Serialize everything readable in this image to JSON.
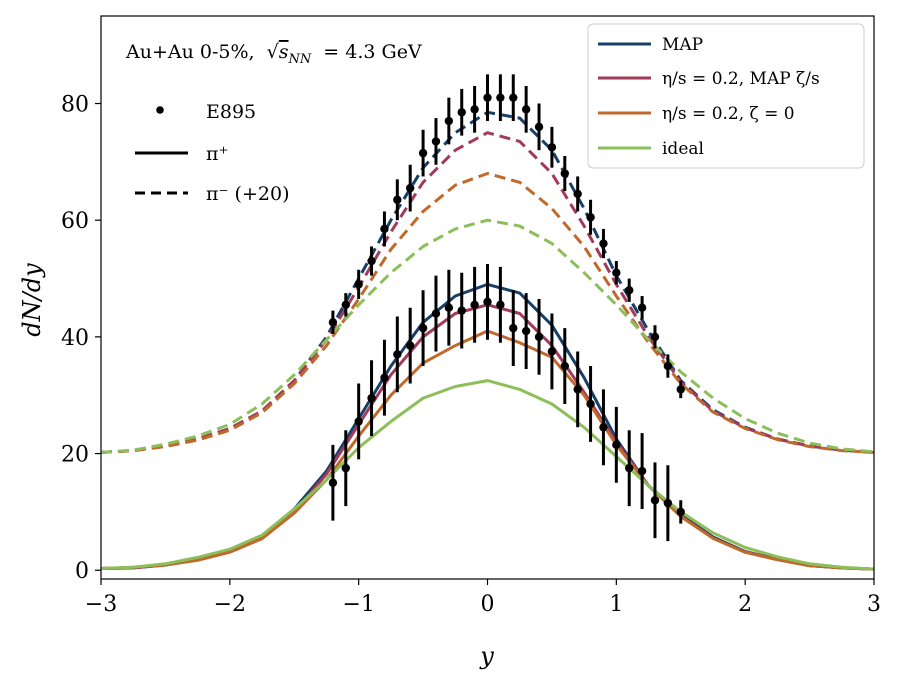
{
  "chart_data": {
    "type": "line",
    "title": "",
    "annotation": "Au+Au 0-5%, √s_NN = 4.3 GeV",
    "annotation_parts": {
      "system": "Au+Au 0-5%,",
      "sqrt": "√",
      "s": "s",
      "sub": "NN",
      "eq": "= 4.3 GeV"
    },
    "xlabel": "y",
    "ylabel": "dN/dy",
    "xlim": [
      -3,
      3
    ],
    "ylim": [
      -1.5,
      95
    ],
    "xticks": [
      -3,
      -2,
      -1,
      0,
      1,
      2,
      3
    ],
    "xtick_labels": [
      "−3",
      "−2",
      "−1",
      "0",
      "1",
      "2",
      "3"
    ],
    "yticks": [
      0,
      20,
      40,
      60,
      80
    ],
    "ytick_labels": [
      "0",
      "20",
      "40",
      "60",
      "80"
    ],
    "grid": false,
    "colors": {
      "MAP": "#173f68",
      "eta_MAP": "#a23a5a",
      "eta_zeta0": "#c0692b",
      "ideal": "#8cbf5a",
      "data": "#000000"
    },
    "legend_models": [
      {
        "key": "MAP",
        "label": "MAP"
      },
      {
        "key": "eta_MAP",
        "label": "η/s = 0.2,  MAP ζ/s"
      },
      {
        "key": "eta_zeta0",
        "label": "η/s = 0.2,  ζ = 0"
      },
      {
        "key": "ideal",
        "label": "ideal"
      }
    ],
    "legend_models_position": "top-right",
    "legend_styles": [
      {
        "key": "data",
        "label": "E895"
      },
      {
        "key": "solid",
        "label": "π⁺"
      },
      {
        "key": "dashed",
        "label": "π⁻ (+20)"
      }
    ],
    "legend_styles_position": "top-left",
    "series": [
      {
        "name": "MAP",
        "species": "pi+",
        "color_key": "MAP",
        "x": [
          -3,
          -2.75,
          -2.5,
          -2.25,
          -2,
          -1.75,
          -1.5,
          -1.25,
          -1,
          -0.75,
          -0.5,
          -0.25,
          0,
          0.25,
          0.5,
          0.75,
          1,
          1.25,
          1.5,
          1.75,
          2,
          2.25,
          2.5,
          2.75,
          3
        ],
        "y": [
          0.3,
          0.4,
          0.9,
          1.8,
          3.3,
          5.9,
          10.5,
          17,
          26,
          35,
          42.5,
          47,
          49,
          47.5,
          42,
          33,
          22.5,
          14.5,
          9.5,
          5.7,
          3.2,
          1.9,
          0.8,
          0.4,
          0.2
        ]
      },
      {
        "name": "η/s = 0.2, MAP ζ/s",
        "species": "pi+",
        "color_key": "eta_MAP",
        "x": [
          -3,
          -2.75,
          -2.5,
          -2.25,
          -2,
          -1.75,
          -1.5,
          -1.25,
          -1,
          -0.75,
          -0.5,
          -0.25,
          0,
          0.25,
          0.5,
          0.75,
          1,
          1.25,
          1.5,
          1.75,
          2,
          2.25,
          2.5,
          2.75,
          3
        ],
        "y": [
          0.3,
          0.4,
          0.9,
          1.8,
          3.2,
          5.6,
          10,
          16.5,
          25,
          33.5,
          40,
          44,
          45.5,
          44,
          38.5,
          30.5,
          22,
          14.5,
          9.3,
          5.5,
          3.1,
          1.8,
          0.8,
          0.4,
          0.2
        ]
      },
      {
        "name": "η/s = 0.2, ζ = 0",
        "species": "pi+",
        "color_key": "eta_zeta0",
        "x": [
          -3,
          -2.75,
          -2.5,
          -2.25,
          -2,
          -1.75,
          -1.5,
          -1.25,
          -1,
          -0.75,
          -0.5,
          -0.25,
          0,
          0.25,
          0.5,
          0.75,
          1,
          1.25,
          1.5,
          1.75,
          2,
          2.25,
          2.5,
          2.75,
          3
        ],
        "y": [
          0.3,
          0.5,
          0.9,
          1.7,
          3.1,
          5.4,
          9.8,
          15.5,
          23,
          30,
          35.5,
          38.5,
          41,
          39,
          36.5,
          30,
          21.5,
          14.5,
          9.2,
          5.5,
          3.1,
          1.8,
          0.8,
          0.4,
          0.2
        ]
      },
      {
        "name": "ideal",
        "species": "pi+",
        "color_key": "ideal",
        "x": [
          -3,
          -2.75,
          -2.5,
          -2.25,
          -2,
          -1.75,
          -1.5,
          -1.25,
          -1,
          -0.75,
          -0.5,
          -0.25,
          0,
          0.25,
          0.5,
          0.75,
          1,
          1.25,
          1.5,
          1.75,
          2,
          2.25,
          2.5,
          2.75,
          3
        ],
        "y": [
          0.3,
          0.5,
          1.1,
          2.2,
          3.6,
          6,
          10.5,
          15.5,
          21,
          25.5,
          29.5,
          31.5,
          32.5,
          31,
          28.5,
          24.5,
          19.5,
          14.5,
          10,
          6.4,
          3.9,
          2.3,
          1.1,
          0.5,
          0.2
        ]
      },
      {
        "name": "MAP",
        "species": "pi- (+20)",
        "color_key": "MAP",
        "x": [
          -3,
          -2.75,
          -2.5,
          -2.25,
          -2,
          -1.75,
          -1.5,
          -1.25,
          -1,
          -0.75,
          -0.5,
          -0.25,
          0,
          0.25,
          0.5,
          0.75,
          1,
          1.25,
          1.5,
          1.75,
          2,
          2.25,
          2.5,
          2.75,
          3
        ],
        "y": [
          20.2,
          20.5,
          21.3,
          22.5,
          24.3,
          27.3,
          32.5,
          40,
          50,
          60,
          69,
          75,
          78.5,
          77.5,
          72,
          62,
          50.5,
          41,
          32.5,
          27.5,
          24.5,
          22.5,
          21.3,
          20.6,
          20.2
        ]
      },
      {
        "name": "η/s = 0.2, MAP ζ/s",
        "species": "pi- (+20)",
        "color_key": "eta_MAP",
        "x": [
          -3,
          -2.75,
          -2.5,
          -2.25,
          -2,
          -1.75,
          -1.5,
          -1.25,
          -1,
          -0.75,
          -0.5,
          -0.25,
          0,
          0.25,
          0.5,
          0.75,
          1,
          1.25,
          1.5,
          1.75,
          2,
          2.25,
          2.5,
          2.75,
          3
        ],
        "y": [
          20.2,
          20.5,
          21.3,
          22.5,
          24.3,
          27.3,
          32.5,
          39.5,
          48.5,
          58,
          66.5,
          72,
          75,
          73.5,
          68,
          59,
          49,
          40,
          32.3,
          27.3,
          24.4,
          22.5,
          21.3,
          20.6,
          20.2
        ]
      },
      {
        "name": "η/s = 0.2, ζ = 0",
        "species": "pi- (+20)",
        "color_key": "eta_zeta0",
        "x": [
          -3,
          -2.75,
          -2.5,
          -2.25,
          -2,
          -1.75,
          -1.5,
          -1.25,
          -1,
          -0.75,
          -0.5,
          -0.25,
          0,
          0.25,
          0.5,
          0.75,
          1,
          1.25,
          1.5,
          1.75,
          2,
          2.25,
          2.5,
          2.75,
          3
        ],
        "y": [
          20.2,
          20.5,
          21.2,
          22.3,
          24,
          27,
          32,
          38.5,
          46.5,
          55,
          61.5,
          66,
          68,
          66.5,
          62,
          55.5,
          47,
          39,
          32,
          27.1,
          24.3,
          22.4,
          21.2,
          20.5,
          20.2
        ]
      },
      {
        "name": "ideal",
        "species": "pi- (+20)",
        "color_key": "ideal",
        "x": [
          -3,
          -2.75,
          -2.5,
          -2.25,
          -2,
          -1.75,
          -1.5,
          -1.25,
          -1,
          -0.75,
          -0.5,
          -0.25,
          0,
          0.25,
          0.5,
          0.75,
          1,
          1.25,
          1.5,
          1.75,
          2,
          2.25,
          2.5,
          2.75,
          3
        ],
        "y": [
          20.2,
          20.6,
          21.6,
          23,
          25,
          28.5,
          33.5,
          39.5,
          45.5,
          51,
          55.5,
          58.5,
          60,
          59,
          56,
          51,
          45.5,
          39.5,
          34,
          29.5,
          26,
          23.5,
          21.8,
          20.8,
          20.3
        ]
      }
    ],
    "data_points": [
      {
        "name": "E895 π+",
        "x": [
          -1.2,
          -1.1,
          -1.0,
          -0.9,
          -0.8,
          -0.7,
          -0.6,
          -0.5,
          -0.4,
          -0.3,
          -0.2,
          -0.1,
          0.0,
          0.1,
          0.2,
          0.3,
          0.4,
          0.5,
          0.6,
          0.7,
          0.8,
          0.9,
          1.0,
          1.1,
          1.2,
          1.3,
          1.4,
          1.5
        ],
        "y": [
          15,
          17.5,
          25.5,
          29.5,
          33,
          37,
          38.5,
          41.5,
          44,
          45,
          44.5,
          45.5,
          46,
          45.5,
          41.5,
          41,
          40,
          37.5,
          35,
          31,
          28.5,
          24.5,
          21.5,
          17.5,
          17,
          12,
          11.5,
          10
        ],
        "err": [
          6.5,
          6.5,
          6.5,
          6.5,
          6.5,
          6.5,
          6.5,
          6.5,
          6.5,
          6.5,
          6.5,
          6.5,
          6.5,
          6.5,
          6.5,
          6.5,
          6.5,
          6.5,
          6.5,
          6.5,
          6.5,
          6.5,
          6.5,
          6.5,
          6.5,
          6.5,
          6.5,
          2
        ]
      },
      {
        "name": "E895 π- (+20)",
        "x": [
          -1.2,
          -1.1,
          -1.0,
          -0.9,
          -0.8,
          -0.7,
          -0.6,
          -0.5,
          -0.4,
          -0.3,
          -0.2,
          -0.1,
          0.0,
          0.1,
          0.2,
          0.3,
          0.4,
          0.5,
          0.6,
          0.7,
          0.8,
          0.9,
          1.0,
          1.1,
          1.2,
          1.3,
          1.4,
          1.5
        ],
        "y": [
          42.5,
          45.5,
          49,
          53,
          58.5,
          63.5,
          65.5,
          71.5,
          73.5,
          77,
          78.5,
          79,
          81,
          81,
          81,
          79,
          76,
          72.5,
          68,
          64.5,
          60.5,
          56,
          51,
          48,
          45,
          40,
          35,
          31
        ],
        "err": [
          2,
          2,
          2.5,
          2.5,
          3,
          3.5,
          4,
          4,
          4,
          4,
          4,
          4,
          4,
          4,
          4,
          4,
          4,
          3.5,
          3,
          3,
          3,
          2.5,
          2,
          2,
          2,
          2,
          2,
          1.5
        ]
      }
    ]
  }
}
